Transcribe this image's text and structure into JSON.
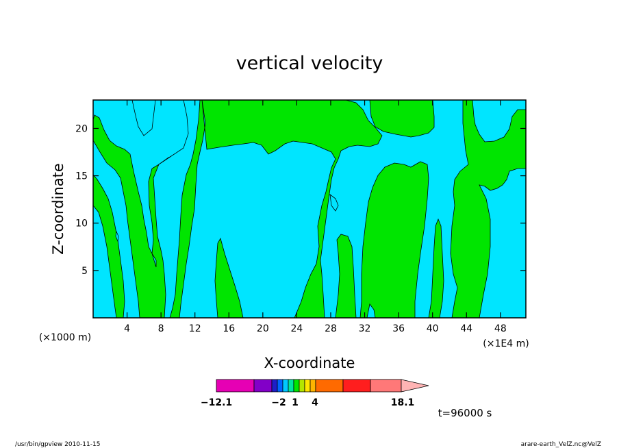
{
  "chart_data": {
    "type": "heatmap",
    "title": "vertical velocity",
    "xlabel": "X-coordinate",
    "ylabel": "Z-coordinate",
    "x_unit_note": "(×1E4 m)",
    "y_unit_note": "(×1000 m)",
    "xlim": [
      0,
      51
    ],
    "ylim": [
      0,
      23
    ],
    "x_ticks": [
      "4",
      "8",
      "12",
      "16",
      "20",
      "24",
      "28",
      "32",
      "36",
      "40",
      "44",
      "48"
    ],
    "y_ticks": [
      "5",
      "10",
      "15",
      "20"
    ],
    "x_tick_values": [
      4,
      8,
      12,
      16,
      20,
      24,
      28,
      32,
      36,
      40,
      44,
      48
    ],
    "y_tick_values": [
      5,
      10,
      15,
      20
    ],
    "fill_colors": {
      "negative": "#00e5ff",
      "positive": "#00e500",
      "contour": "#000000"
    },
    "colorbar": {
      "colors": [
        "#e600b4",
        "#8200c8",
        "#1e1ec8",
        "#0064ff",
        "#00c8ff",
        "#00e5a0",
        "#00e600",
        "#b4e600",
        "#ffe600",
        "#ffb400",
        "#ff6a00",
        "#ff1e1e",
        "#ff7878",
        "#ffb4b4"
      ],
      "label_values": [
        "−12.1",
        "−2",
        "1",
        "4",
        "18.1"
      ]
    },
    "time_label": "t=96000 s"
  },
  "footer": {
    "left": "/usr/bin/gpview   2010-11-15",
    "right": "arare-earth_VelZ.nc@VelZ"
  }
}
